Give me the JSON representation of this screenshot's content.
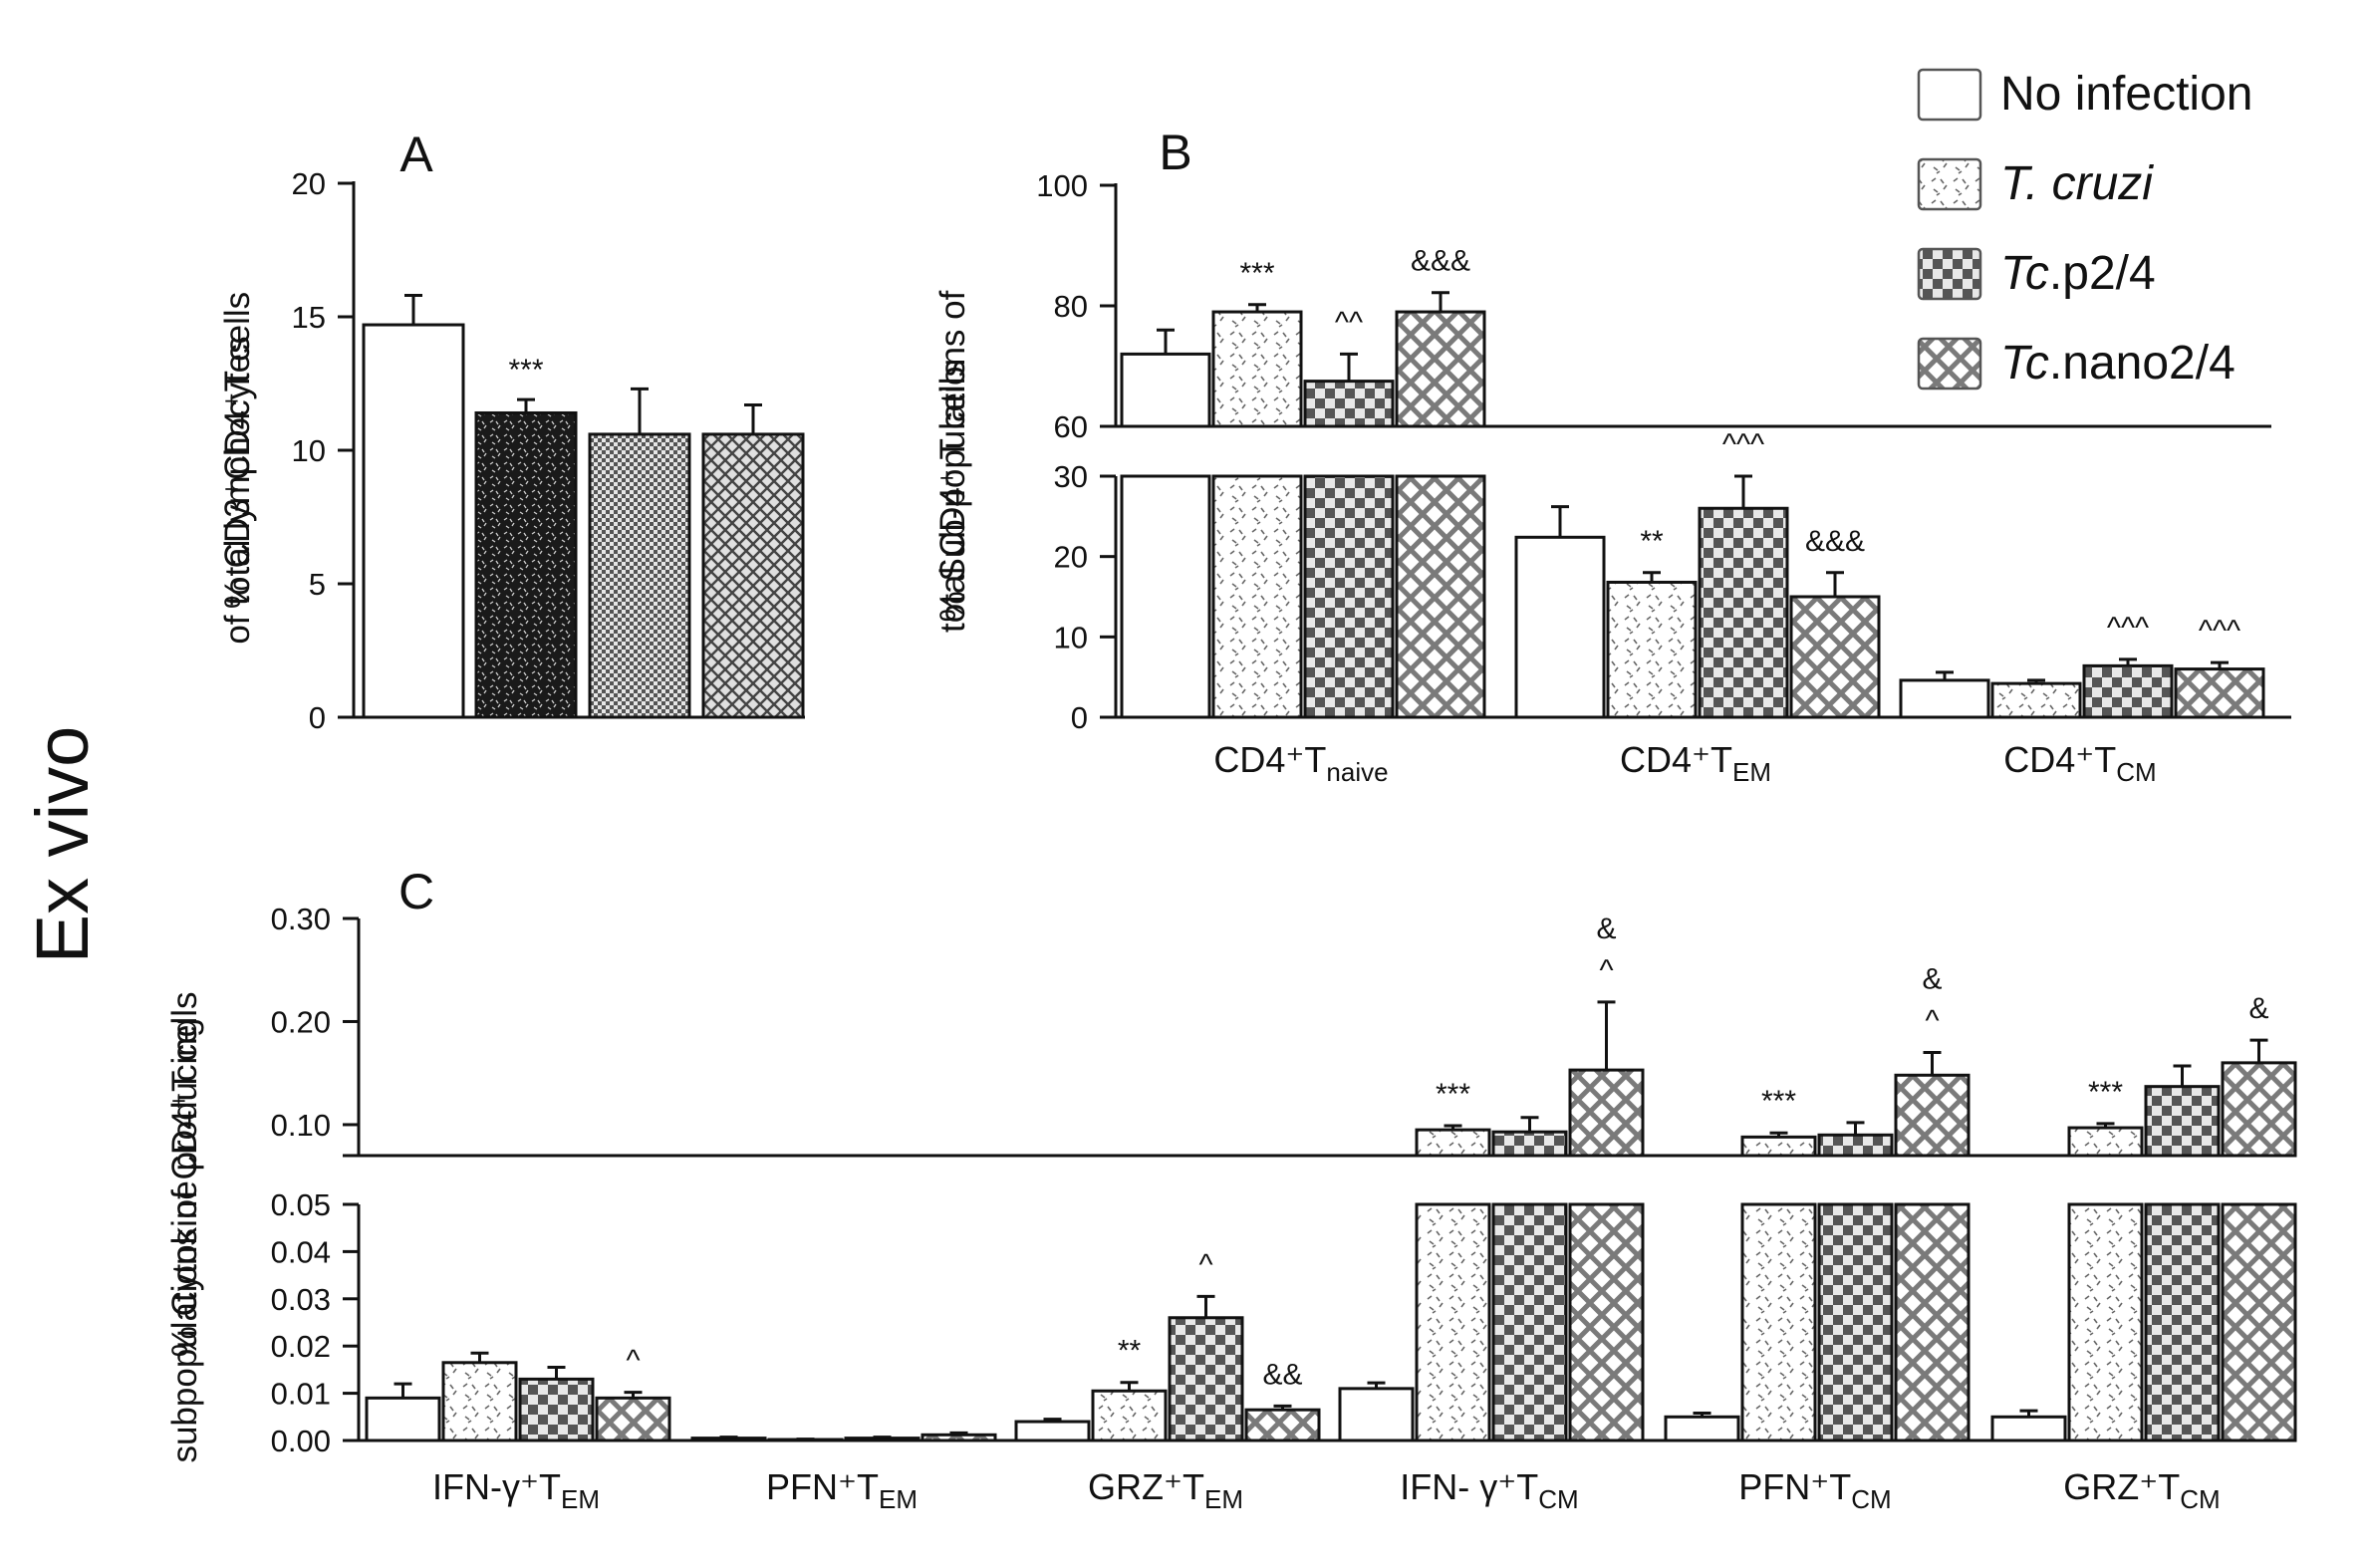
{
  "side_label": "Ex vivo",
  "legend": [
    {
      "text": "No infection",
      "italic_prefix": "",
      "pattern": "white"
    },
    {
      "text": "",
      "italic_prefix": "T. cruzi",
      "pattern": "dots"
    },
    {
      "text": ".p2/4",
      "italic_prefix": "Tc",
      "pattern": "checker"
    },
    {
      "text": ".nano2/4",
      "italic_prefix": "Tc",
      "pattern": "cross"
    }
  ],
  "chart_data": [
    {
      "panel": "A",
      "type": "bar",
      "ylabel_lines": [
        "% CD3⁺CD4⁺T cells",
        "of total lymphocytes"
      ],
      "ylim": [
        0,
        20
      ],
      "yticks": [
        0,
        5,
        10,
        15,
        20
      ],
      "series_patterns": [
        "white",
        "black-dots",
        "dense-checker",
        "cross"
      ],
      "values": [
        14.7,
        11.4,
        10.6,
        10.6
      ],
      "errors": [
        1.1,
        0.5,
        1.7,
        1.1
      ],
      "annotations": [
        "",
        "***",
        "",
        ""
      ]
    },
    {
      "panel": "B",
      "type": "bar",
      "ylabel_lines": [
        "% Sub-populations  of",
        "total CD4⁺ T cells"
      ],
      "broken_axis": {
        "lower": [
          0,
          30
        ],
        "upper": [
          60,
          100
        ]
      },
      "yticks_lower": [
        0,
        10,
        20,
        30
      ],
      "yticks_upper": [
        60,
        80,
        100
      ],
      "categories": [
        {
          "base": "CD4⁺T",
          "sub": "naive"
        },
        {
          "base": "CD4⁺T",
          "sub": "EM"
        },
        {
          "base": "CD4⁺T",
          "sub": "CM"
        }
      ],
      "series": [
        {
          "name": "No infection",
          "values": [
            72,
            22.4,
            4.6
          ],
          "errors": [
            4,
            3.8,
            1.0
          ]
        },
        {
          "name": "T. cruzi",
          "values": [
            79,
            16.8,
            4.2
          ],
          "errors": [
            1.2,
            1.2,
            0.4
          ]
        },
        {
          "name": "Tc.p2/4",
          "values": [
            67.5,
            26,
            6.4
          ],
          "errors": [
            4.5,
            4,
            0.8
          ]
        },
        {
          "name": "Tc.nano2/4",
          "values": [
            79,
            15,
            6
          ],
          "errors": [
            3.2,
            3,
            0.8
          ]
        }
      ],
      "annotations": [
        [
          "",
          "***",
          "^^",
          "&&&"
        ],
        [
          "",
          "**",
          "^^^",
          "&&&"
        ],
        [
          "",
          "",
          "^^^",
          "^^^"
        ]
      ]
    },
    {
      "panel": "C",
      "type": "bar",
      "ylabel_lines": [
        "% Cytokine producing",
        "subpopulations of CD4⁺T cells"
      ],
      "broken_axis": {
        "lower": [
          0,
          0.05
        ],
        "upper": [
          0.07,
          0.3
        ]
      },
      "yticks_lower": [
        "0.00",
        "0.01",
        "0.02",
        "0.03",
        "0.04",
        "0.05"
      ],
      "yticks_upper": [
        "0.10",
        "0.20",
        "0.30"
      ],
      "categories": [
        {
          "base": "IFN-γ⁺T",
          "sub": "EM"
        },
        {
          "base": "PFN⁺T",
          "sub": "EM"
        },
        {
          "base": "GRZ⁺T",
          "sub": "EM"
        },
        {
          "base": "IFN- γ⁺T",
          "sub": "CM"
        },
        {
          "base": "PFN⁺T",
          "sub": "CM"
        },
        {
          "base": "GRZ⁺T",
          "sub": "CM"
        }
      ],
      "series": [
        {
          "name": "No infection",
          "values": [
            0.009,
            0.0005,
            0.004,
            0.011,
            0.005,
            0.005
          ],
          "errors": [
            0.003,
            0.0002,
            0.0005,
            0.0012,
            0.0008,
            0.0013
          ]
        },
        {
          "name": "T. cruzi",
          "values": [
            0.0165,
            0.0002,
            0.0105,
            0.095,
            0.088,
            0.097
          ],
          "errors": [
            0.002,
            0.0001,
            0.0018,
            0.004,
            0.004,
            0.004
          ]
        },
        {
          "name": "Tc.p2/4",
          "values": [
            0.013,
            0.0005,
            0.026,
            0.093,
            0.09,
            0.137
          ],
          "errors": [
            0.0025,
            0.0002,
            0.0045,
            0.014,
            0.012,
            0.02
          ]
        },
        {
          "name": "Tc.nano2/4",
          "values": [
            0.009,
            0.0012,
            0.0065,
            0.153,
            0.148,
            0.16
          ],
          "errors": [
            0.0012,
            0.0004,
            0.0008,
            0.066,
            0.022,
            0.022
          ]
        }
      ],
      "annotations": [
        [
          "",
          "",
          "",
          "^"
        ],
        [
          "",
          "",
          "",
          ""
        ],
        [
          "",
          "**",
          "^",
          "&&"
        ],
        [
          "",
          "***",
          "",
          "& ^"
        ],
        [
          "",
          "***",
          "",
          "& ^"
        ],
        [
          "",
          "***",
          "",
          "&"
        ]
      ]
    }
  ]
}
